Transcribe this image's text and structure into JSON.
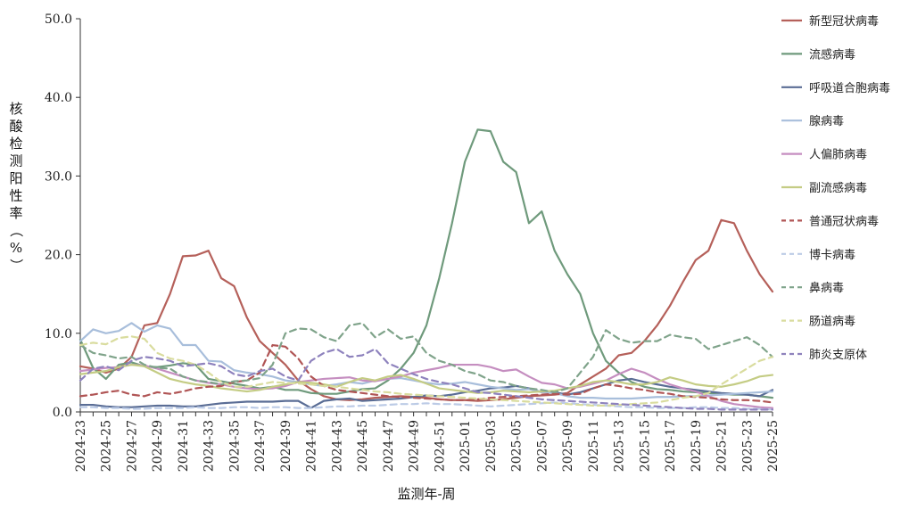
{
  "chart_data": {
    "type": "line",
    "title": "",
    "xlabel": "监测年-周",
    "ylabel": "核酸检测阳性率（%）",
    "ylim": [
      0,
      50
    ],
    "yticks": [
      "0.0",
      "10.0",
      "20.0",
      "30.0",
      "40.0",
      "50.0"
    ],
    "grid": false,
    "legend_position": "right",
    "x": [
      "2024-23",
      "2024-24",
      "2024-25",
      "2024-26",
      "2024-27",
      "2024-28",
      "2024-29",
      "2024-30",
      "2024-31",
      "2024-32",
      "2024-33",
      "2024-34",
      "2024-35",
      "2024-36",
      "2024-37",
      "2024-38",
      "2024-39",
      "2024-40",
      "2024-41",
      "2024-42",
      "2024-43",
      "2024-44",
      "2024-45",
      "2024-46",
      "2024-47",
      "2024-48",
      "2024-49",
      "2024-50",
      "2024-51",
      "2024-52",
      "2025-01",
      "2025-02",
      "2025-03",
      "2025-04",
      "2025-05",
      "2025-06",
      "2025-07",
      "2025-08",
      "2025-09",
      "2025-10",
      "2025-11",
      "2025-12",
      "2025-13",
      "2025-14",
      "2025-15",
      "2025-16",
      "2025-17",
      "2025-18",
      "2025-19",
      "2025-20",
      "2025-21",
      "2025-22",
      "2025-23",
      "2025-24",
      "2025-25"
    ],
    "x_tick_labels": [
      "2024-23",
      "2024-25",
      "2024-27",
      "2024-29",
      "2024-31",
      "2024-33",
      "2024-35",
      "2024-37",
      "2024-39",
      "2024-41",
      "2024-43",
      "2024-45",
      "2024-47",
      "2024-49",
      "2024-51",
      "2025-01",
      "2025-03",
      "2025-05",
      "2025-07",
      "2025-09",
      "2025-11",
      "2025-13",
      "2025-15",
      "2025-17",
      "2025-19",
      "2025-21",
      "2025-23",
      "2025-25"
    ],
    "series": [
      {
        "name": "新型冠状病毒",
        "color": "#b5605a",
        "dash": "solid",
        "values": [
          5.8,
          5.5,
          5.0,
          5.5,
          7.0,
          11.0,
          11.3,
          15.0,
          19.8,
          19.9,
          20.5,
          17.0,
          16.0,
          12.0,
          9.0,
          7.5,
          6.0,
          4.0,
          2.9,
          2.0,
          1.6,
          1.5,
          1.6,
          1.8,
          1.9,
          2.0,
          1.9,
          1.8,
          1.6,
          1.5,
          1.5,
          1.4,
          1.5,
          1.6,
          1.8,
          2.0,
          2.1,
          2.2,
          2.4,
          3.5,
          4.5,
          5.5,
          7.2,
          7.5,
          9.0,
          11.0,
          13.5,
          16.5,
          19.3,
          20.5,
          24.4,
          24.0,
          20.5,
          17.5,
          15.3
        ]
      },
      {
        "name": "流感病毒",
        "color": "#6f9a7c",
        "dash": "solid",
        "values": [
          9.2,
          5.6,
          4.2,
          6.0,
          6.3,
          5.8,
          5.7,
          5.9,
          6.2,
          6.0,
          4.2,
          3.9,
          3.6,
          3.3,
          3.0,
          3.2,
          2.8,
          2.8,
          2.4,
          2.3,
          2.3,
          2.6,
          2.9,
          3.0,
          4.0,
          5.5,
          7.5,
          11.0,
          17.0,
          24.0,
          31.8,
          35.9,
          35.7,
          31.8,
          30.5,
          24.0,
          25.5,
          20.5,
          17.5,
          15.0,
          10.0,
          6.5,
          5.0,
          3.8,
          3.2,
          2.9,
          2.8,
          2.6,
          2.5,
          2.4,
          2.3,
          2.2,
          2.2,
          2.0,
          1.8
        ]
      },
      {
        "name": "呼吸道合胞病毒",
        "color": "#5a6d95",
        "dash": "solid",
        "values": [
          0.9,
          0.9,
          0.7,
          0.6,
          0.6,
          0.7,
          0.8,
          0.8,
          0.7,
          0.7,
          0.9,
          1.1,
          1.2,
          1.3,
          1.3,
          1.3,
          1.4,
          1.4,
          0.5,
          1.4,
          1.6,
          1.7,
          1.4,
          1.5,
          1.6,
          1.7,
          1.9,
          2.1,
          2.0,
          2.2,
          2.5,
          2.7,
          3.0,
          3.1,
          3.3,
          3.0,
          2.5,
          2.5,
          2.2,
          2.5,
          3.0,
          3.5,
          4.0,
          4.2,
          3.8,
          3.5,
          3.2,
          3.0,
          2.8,
          2.6,
          2.4,
          2.3,
          2.2,
          2.0,
          2.8
        ]
      },
      {
        "name": "腺病毒",
        "color": "#a8bedb",
        "dash": "solid",
        "values": [
          9.0,
          10.5,
          10.0,
          10.3,
          11.3,
          10.2,
          11.0,
          10.6,
          8.5,
          8.5,
          6.5,
          6.4,
          5.3,
          5.0,
          4.8,
          4.5,
          4.0,
          3.8,
          3.5,
          3.3,
          3.5,
          3.8,
          3.6,
          4.0,
          4.2,
          4.3,
          4.0,
          3.7,
          3.5,
          3.6,
          3.8,
          3.5,
          3.2,
          3.0,
          2.8,
          2.9,
          2.5,
          2.4,
          2.0,
          1.8,
          1.8,
          1.7,
          1.7,
          1.7,
          1.8,
          1.9,
          1.9,
          2.0,
          2.0,
          2.1,
          2.2,
          2.3,
          2.4,
          2.5,
          2.6
        ]
      },
      {
        "name": "人偏肺病毒",
        "color": "#c58ec0",
        "dash": "solid",
        "values": [
          5.2,
          5.4,
          5.6,
          5.7,
          6.0,
          5.9,
          5.5,
          5.0,
          4.5,
          4.0,
          3.7,
          3.5,
          3.2,
          3.0,
          2.9,
          3.0,
          3.3,
          3.8,
          4.0,
          4.2,
          4.3,
          4.4,
          4.0,
          3.9,
          4.2,
          4.5,
          5.0,
          5.3,
          5.6,
          6.0,
          6.0,
          6.0,
          5.7,
          5.2,
          5.4,
          4.5,
          3.7,
          3.5,
          3.0,
          3.2,
          3.6,
          4.0,
          4.8,
          5.5,
          5.0,
          4.2,
          3.5,
          3.0,
          2.6,
          2.0,
          1.4,
          1.0,
          0.8,
          0.6,
          0.5
        ]
      },
      {
        "name": "副流感病毒",
        "color": "#c4cc84",
        "dash": "solid",
        "values": [
          4.8,
          5.0,
          5.2,
          5.7,
          6.0,
          5.8,
          5.0,
          4.2,
          3.8,
          3.5,
          3.3,
          3.0,
          2.8,
          2.6,
          2.8,
          3.2,
          3.5,
          3.8,
          3.7,
          3.5,
          3.2,
          3.8,
          4.3,
          4.0,
          4.5,
          4.7,
          4.2,
          3.6,
          3.0,
          2.8,
          2.6,
          2.4,
          2.5,
          2.7,
          2.6,
          2.5,
          2.6,
          2.7,
          3.0,
          3.3,
          3.8,
          4.0,
          3.8,
          3.5,
          3.5,
          3.8,
          4.4,
          4.0,
          3.5,
          3.3,
          3.2,
          3.5,
          3.9,
          4.5,
          4.7
        ]
      },
      {
        "name": "普通冠状病毒",
        "color": "#b05555",
        "dash": "dashed",
        "values": [
          2.0,
          2.2,
          2.5,
          2.7,
          2.2,
          2.0,
          2.5,
          2.3,
          2.6,
          3.0,
          3.2,
          3.3,
          3.8,
          4.0,
          5.0,
          8.5,
          8.3,
          6.8,
          4.5,
          3.3,
          2.8,
          2.6,
          2.4,
          2.2,
          2.0,
          1.9,
          1.8,
          1.7,
          1.6,
          1.5,
          1.5,
          1.6,
          1.8,
          1.9,
          2.0,
          2.1,
          2.2,
          2.3,
          2.2,
          2.3,
          3.0,
          3.5,
          3.3,
          3.0,
          2.8,
          2.5,
          2.3,
          2.0,
          1.9,
          1.8,
          1.6,
          1.5,
          1.5,
          1.4,
          1.2
        ]
      },
      {
        "name": "博卡病毒",
        "color": "#bccbe6",
        "dash": "dashed",
        "values": [
          0.6,
          0.6,
          0.5,
          0.5,
          0.4,
          0.4,
          0.5,
          0.5,
          0.5,
          0.6,
          0.5,
          0.5,
          0.6,
          0.6,
          0.5,
          0.6,
          0.6,
          0.5,
          0.5,
          0.6,
          0.7,
          0.7,
          0.8,
          0.8,
          0.9,
          1.0,
          1.0,
          1.1,
          1.0,
          1.0,
          0.9,
          0.8,
          0.7,
          0.8,
          0.9,
          1.0,
          1.1,
          1.2,
          1.1,
          1.0,
          0.9,
          0.8,
          0.7,
          0.6,
          0.6,
          0.5,
          0.5,
          0.5,
          0.6,
          0.6,
          0.5,
          0.5,
          0.4,
          0.4,
          0.3
        ]
      },
      {
        "name": "鼻病毒",
        "color": "#7fa38a",
        "dash": "dashed",
        "values": [
          8.5,
          7.5,
          7.2,
          6.8,
          7.0,
          6.0,
          5.6,
          5.5,
          4.5,
          4.0,
          3.8,
          3.5,
          3.9,
          4.0,
          4.3,
          6.0,
          10.0,
          10.6,
          10.5,
          9.5,
          9.0,
          11.0,
          11.3,
          9.5,
          10.5,
          9.3,
          9.6,
          7.5,
          6.5,
          6.0,
          5.2,
          4.8,
          4.0,
          3.8,
          3.3,
          3.0,
          2.8,
          2.5,
          3.0,
          5.0,
          7.0,
          10.4,
          9.3,
          8.8,
          9.0,
          9.0,
          9.8,
          9.5,
          9.3,
          8.0,
          8.5,
          9.0,
          9.5,
          8.5,
          7.0
        ]
      },
      {
        "name": "肠道病毒",
        "color": "#d9dc9e",
        "dash": "dashed",
        "values": [
          8.5,
          8.8,
          8.6,
          9.4,
          9.6,
          9.3,
          7.5,
          6.8,
          6.5,
          6.0,
          5.0,
          3.8,
          3.2,
          3.2,
          3.5,
          3.8,
          3.7,
          3.6,
          3.5,
          3.3,
          3.2,
          3.0,
          2.8,
          2.6,
          2.5,
          2.3,
          2.2,
          2.1,
          2.0,
          1.9,
          1.8,
          1.7,
          1.6,
          1.5,
          1.4,
          1.3,
          1.2,
          1.1,
          1.0,
          0.9,
          0.8,
          0.8,
          0.9,
          1.0,
          1.1,
          1.2,
          1.5,
          1.8,
          2.0,
          2.4,
          3.5,
          4.5,
          5.5,
          6.5,
          7.0
        ]
      },
      {
        "name": "肺炎支原体",
        "color": "#8e82bd",
        "dash": "dashed",
        "values": [
          4.0,
          5.5,
          5.8,
          5.3,
          6.5,
          7.0,
          6.8,
          6.5,
          5.8,
          6.0,
          6.2,
          5.8,
          4.8,
          4.5,
          5.2,
          5.5,
          4.5,
          4.0,
          6.5,
          7.5,
          8.0,
          7.0,
          7.2,
          8.0,
          6.2,
          5.5,
          4.8,
          4.2,
          3.8,
          3.5,
          3.0,
          2.5,
          2.4,
          2.2,
          2.0,
          1.8,
          1.6,
          1.5,
          1.4,
          1.3,
          1.2,
          1.1,
          1.0,
          0.9,
          0.8,
          0.7,
          0.6,
          0.5,
          0.4,
          0.4,
          0.3,
          0.3,
          0.3,
          0.3,
          0.3
        ]
      }
    ]
  }
}
